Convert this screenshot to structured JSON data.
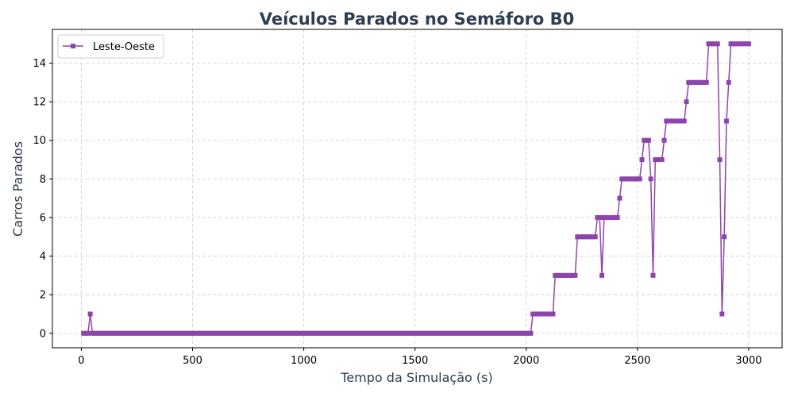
{
  "colors": {
    "series": "#8e44ad",
    "title": "#2c3e50",
    "grid": "#cccccc",
    "axis": "#000000"
  },
  "chart_data": {
    "type": "line",
    "title": "Veículos Parados no Semáforo B0",
    "xlabel": "Tempo da Simulação (s)",
    "ylabel": "Carros Parados",
    "xlim": [
      -130,
      3150
    ],
    "ylim": [
      -0.75,
      15.75
    ],
    "xticks": [
      0,
      500,
      1000,
      1500,
      2000,
      2500,
      3000
    ],
    "yticks": [
      0,
      2,
      4,
      6,
      8,
      10,
      12,
      14
    ],
    "grid": true,
    "legend_position": "upper-left",
    "marker": "square",
    "series": [
      {
        "name": "Leste-Oeste",
        "color": "#8e44ad",
        "segments": [
          [
            10,
            30,
            0,
            10
          ],
          [
            40,
            40,
            1,
            10
          ],
          [
            50,
            2020,
            0,
            10
          ],
          [
            2030,
            2120,
            1,
            10
          ],
          [
            2130,
            2220,
            3,
            10
          ],
          [
            2230,
            2310,
            5,
            10
          ],
          [
            2320,
            2330,
            6,
            10
          ],
          [
            2340,
            2340,
            3,
            10
          ],
          [
            2350,
            2410,
            6,
            10
          ],
          [
            2420,
            2420,
            7,
            10
          ],
          [
            2430,
            2510,
            8,
            10
          ],
          [
            2520,
            2520,
            9,
            10
          ],
          [
            2530,
            2550,
            10,
            10
          ],
          [
            2560,
            2560,
            8,
            10
          ],
          [
            2570,
            2570,
            3,
            10
          ],
          [
            2580,
            2610,
            9,
            10
          ],
          [
            2620,
            2620,
            10,
            10
          ],
          [
            2630,
            2710,
            11,
            10
          ],
          [
            2720,
            2720,
            12,
            10
          ],
          [
            2730,
            2810,
            13,
            10
          ],
          [
            2820,
            2860,
            15,
            10
          ],
          [
            2870,
            2870,
            9,
            10
          ],
          [
            2880,
            2880,
            1,
            10
          ],
          [
            2890,
            2890,
            5,
            10
          ],
          [
            2900,
            2900,
            11,
            10
          ],
          [
            2910,
            2910,
            13,
            10
          ],
          [
            2920,
            3000,
            15,
            10
          ]
        ]
      }
    ]
  }
}
